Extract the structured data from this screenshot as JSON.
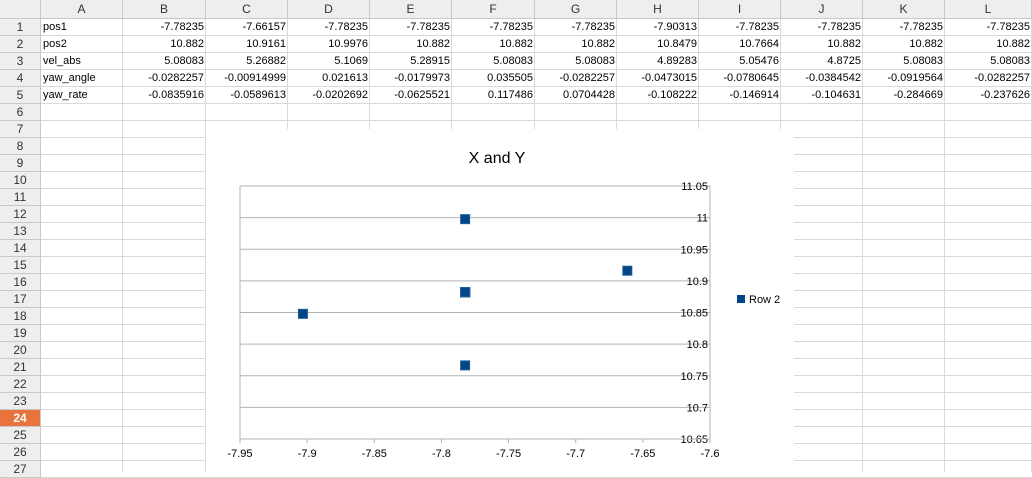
{
  "columns": [
    "A",
    "B",
    "C",
    "D",
    "E",
    "F",
    "G",
    "H",
    "I",
    "J",
    "K",
    "L"
  ],
  "rows": [
    "1",
    "2",
    "3",
    "4",
    "5",
    "6",
    "7",
    "8",
    "9",
    "10",
    "11",
    "12",
    "13",
    "14",
    "15",
    "16",
    "17",
    "18",
    "19",
    "20",
    "21",
    "22",
    "23",
    "24",
    "25",
    "26",
    "27"
  ],
  "active_row": "24",
  "table": [
    [
      "pos1",
      "-7.78235",
      "-7.66157",
      "-7.78235",
      "-7.78235",
      "-7.78235",
      "-7.78235",
      "-7.90313",
      "-7.78235",
      "-7.78235",
      "-7.78235",
      "-7.78235"
    ],
    [
      "pos2",
      "10.882",
      "10.9161",
      "10.9976",
      "10.882",
      "10.882",
      "10.882",
      "10.8479",
      "10.7664",
      "10.882",
      "10.882",
      "10.882"
    ],
    [
      "vel_abs",
      "5.08083",
      "5.26882",
      "5.1069",
      "5.28915",
      "5.08083",
      "5.08083",
      "4.89283",
      "5.05476",
      "4.8725",
      "5.08083",
      "5.08083"
    ],
    [
      "yaw_angle",
      "-0.0282257",
      "-0.00914999",
      "0.021613",
      "-0.0179973",
      "0.035505",
      "-0.0282257",
      "-0.0473015",
      "-0.0780645",
      "-0.0384542",
      "-0.0919564",
      "-0.0282257"
    ],
    [
      "yaw_rate",
      "-0.0835916",
      "-0.0589613",
      "-0.0202692",
      "-0.0625521",
      "0.117486",
      "0.0704428",
      "-0.108222",
      "-0.146914",
      "-0.104631",
      "-0.284669",
      "-0.237626"
    ]
  ],
  "chart_data": {
    "type": "scatter",
    "title": "X and Y",
    "xlabel": "",
    "ylabel": "",
    "xlim": [
      -7.95,
      -7.6
    ],
    "ylim": [
      10.65,
      11.05
    ],
    "x_ticks": [
      "-7.95",
      "-7.9",
      "-7.85",
      "-7.8",
      "-7.75",
      "-7.7",
      "-7.65",
      "-7.6"
    ],
    "y_ticks": [
      "11.05",
      "11",
      "10.95",
      "10.9",
      "10.85",
      "10.8",
      "10.75",
      "10.7",
      "10.65"
    ],
    "grid": "horizontal",
    "legend_position": "right",
    "series": [
      {
        "name": "Row 2",
        "color": "#004586",
        "x": [
          -7.78235,
          -7.66157,
          -7.78235,
          -7.78235,
          -7.78235,
          -7.78235,
          -7.90313,
          -7.78235,
          -7.78235,
          -7.78235,
          -7.78235
        ],
        "y": [
          10.882,
          10.9161,
          10.9976,
          10.882,
          10.882,
          10.882,
          10.8479,
          10.7664,
          10.882,
          10.882,
          10.882
        ]
      }
    ]
  }
}
